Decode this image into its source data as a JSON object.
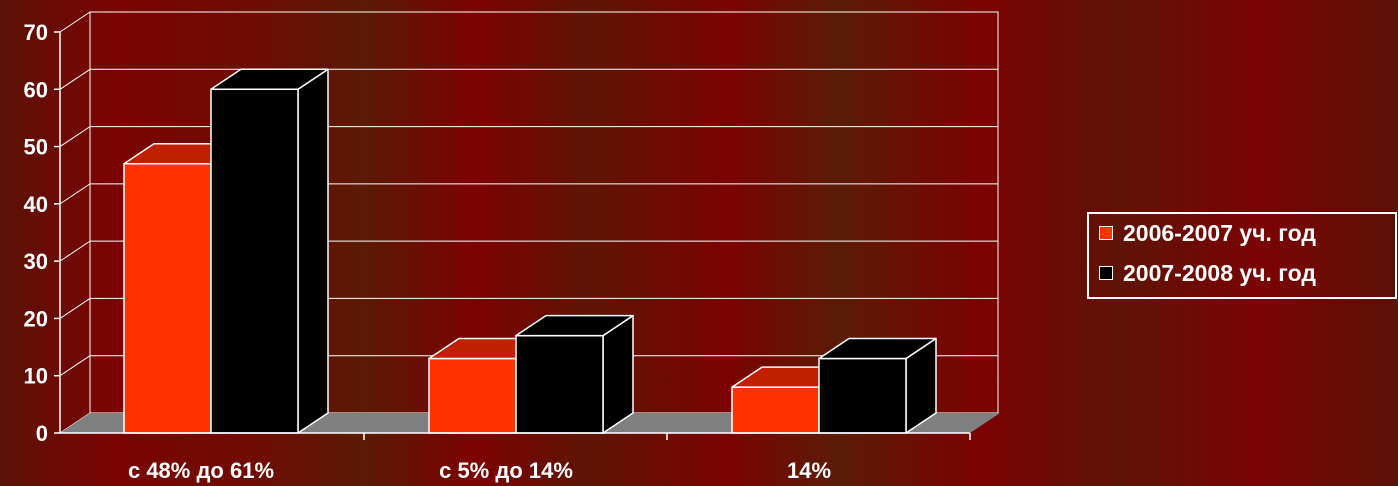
{
  "chart_data": {
    "type": "bar",
    "categories": [
      "с 48% до 61%",
      "с 5% до 14%",
      "14%"
    ],
    "series": [
      {
        "name": "2006-2007 уч. год",
        "values": [
          47,
          13,
          8
        ],
        "color": "#ff3300"
      },
      {
        "name": "2007-2008 уч. год",
        "values": [
          60,
          17,
          13
        ],
        "color": "#000000"
      }
    ],
    "ylim": [
      0,
      70
    ],
    "yticks": [
      "0",
      "10",
      "20",
      "30",
      "40",
      "50",
      "60",
      "70"
    ],
    "grid": true,
    "legend_position": "right",
    "colors": {
      "floor": "#808080",
      "grid": "#ffffff"
    }
  }
}
